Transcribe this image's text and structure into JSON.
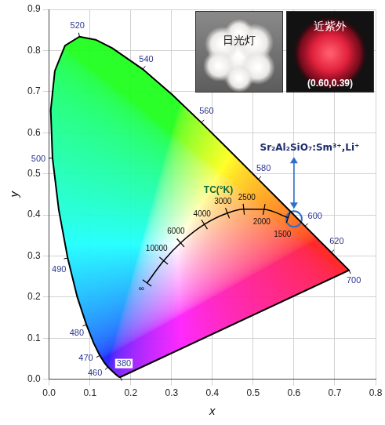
{
  "chart_data": {
    "type": "scatter",
    "xlabel": "x",
    "ylabel": "y",
    "xlim": [
      0,
      0.8
    ],
    "ylim": [
      0,
      0.9
    ],
    "xticks": [
      {
        "value": 0,
        "label": "0.0"
      },
      0.1,
      0.2,
      0.3,
      0.4,
      0.5,
      0.6,
      0.7,
      0.8
    ],
    "yticks": [
      {
        "value": 0,
        "label": "0.0"
      },
      0.1,
      0.2,
      0.3,
      0.4,
      0.5,
      0.6,
      0.7,
      0.8,
      0.9
    ],
    "grid": true,
    "spectral_locus": {
      "color": "#000000",
      "x": [
        0.1741,
        0.1733,
        0.1714,
        0.1644,
        0.1566,
        0.144,
        0.1355,
        0.1241,
        0.1096,
        0.0913,
        0.0687,
        0.0454,
        0.0235,
        0.0082,
        0.0039,
        0.0139,
        0.0389,
        0.0743,
        0.1142,
        0.1547,
        0.2296,
        0.3016,
        0.3731,
        0.4441,
        0.5125,
        0.5752,
        0.627,
        0.6658,
        0.6915,
        0.7079,
        0.719,
        0.73,
        0.7347
      ],
      "y": [
        0.005,
        0.0048,
        0.0051,
        0.0109,
        0.0177,
        0.0297,
        0.0399,
        0.0578,
        0.0868,
        0.1327,
        0.2007,
        0.295,
        0.4127,
        0.5384,
        0.6548,
        0.7502,
        0.812,
        0.8338,
        0.8262,
        0.8059,
        0.7543,
        0.6923,
        0.6245,
        0.5547,
        0.4866,
        0.4242,
        0.3725,
        0.334,
        0.3083,
        0.292,
        0.2809,
        0.27,
        0.2653
      ],
      "labels": [
        380,
        null,
        null,
        null,
        null,
        460,
        null,
        470,
        null,
        480,
        null,
        490,
        null,
        500,
        null,
        null,
        null,
        520,
        null,
        null,
        540,
        null,
        560,
        null,
        580,
        null,
        600,
        null,
        620,
        null,
        null,
        null,
        700
      ]
    },
    "planckian_locus": {
      "title": "TC(°K)",
      "color": "#000000",
      "labels": [
        "∞",
        "10000",
        "6000",
        "4000",
        "3000",
        "2500",
        "2000",
        "1500"
      ],
      "x": [
        0.2399,
        0.2807,
        0.3221,
        0.3805,
        0.4369,
        0.4769,
        0.5267,
        0.5857
      ],
      "y": [
        0.2342,
        0.2883,
        0.3318,
        0.3768,
        0.4041,
        0.4137,
        0.4133,
        0.3931
      ]
    },
    "marked_point": {
      "label": "Sr₂Al₂SiO₇:Sm³⁺,Li⁺",
      "x": 0.6,
      "y": 0.39,
      "color": "#2f6fc4",
      "marker": "circle"
    },
    "inset": {
      "photos": [
        "日光灯",
        "近紫外"
      ],
      "caption": "(0.60,0.39)"
    }
  }
}
